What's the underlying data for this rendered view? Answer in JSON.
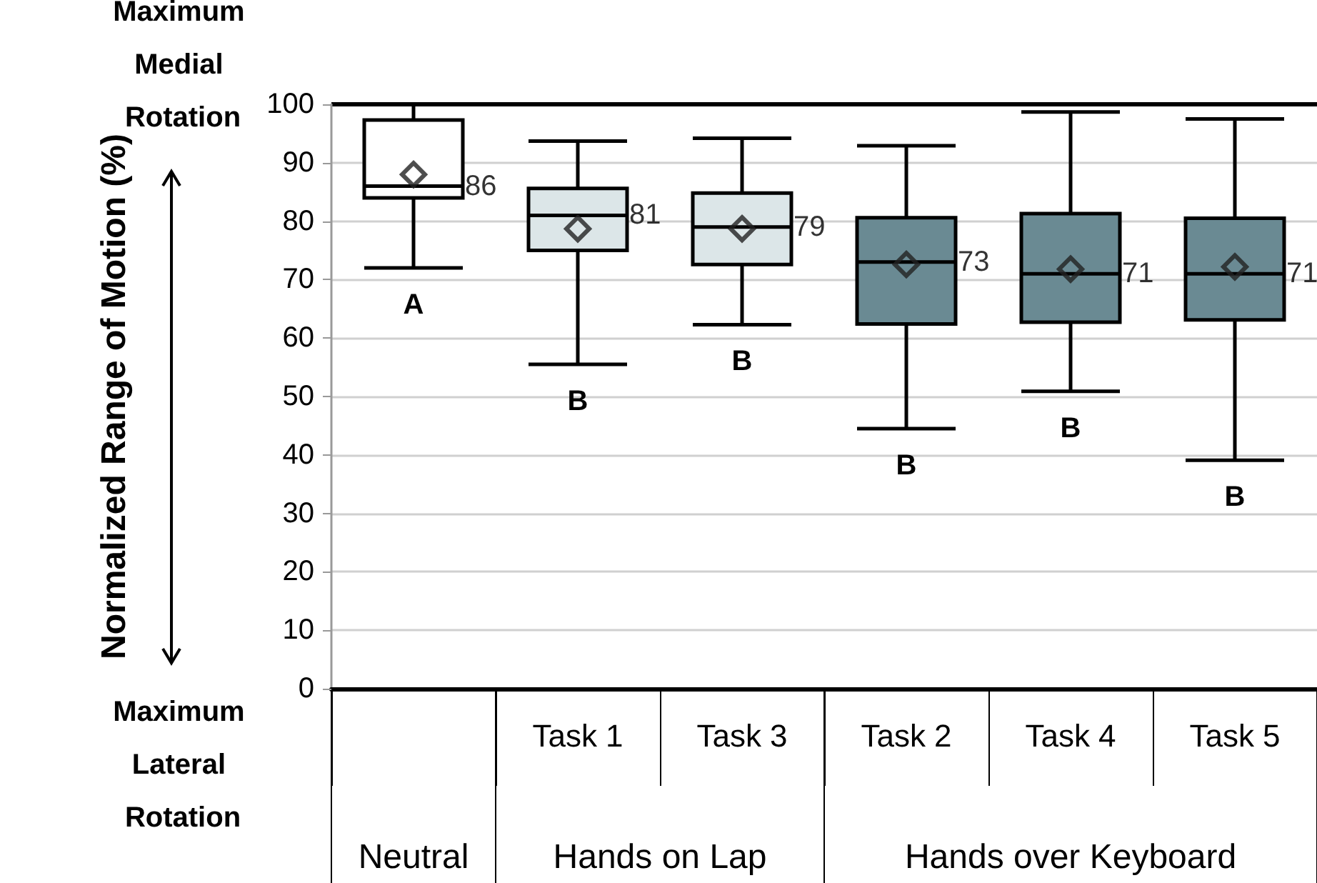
{
  "chart_data": {
    "type": "box",
    "ylabel": "Normalized Range of Motion (%)",
    "categories": [
      null,
      "Task 1",
      "Task 3",
      "Task 2",
      "Task 4",
      "Task 5"
    ],
    "boxes": [
      {
        "low": 72,
        "q1": 84,
        "median": 86,
        "q3": 97.3,
        "high": 100,
        "mean": 88
      },
      {
        "low": 55.5,
        "q1": 75,
        "median": 81,
        "q3": 85.6,
        "high": 93.7,
        "mean": 78.7
      },
      {
        "low": 62.3,
        "q1": 72.6,
        "median": 79,
        "q3": 84.8,
        "high": 94.2,
        "mean": 78.7
      },
      {
        "low": 44.5,
        "q1": 62.4,
        "median": 73,
        "q3": 80.6,
        "high": 92.9,
        "mean": 72.6
      },
      {
        "low": 50.9,
        "q1": 62.7,
        "median": 71,
        "q3": 81.3,
        "high": 98.7,
        "mean": 71.8
      },
      {
        "low": 39.1,
        "q1": 63.1,
        "median": 71,
        "q3": 80.5,
        "high": 97.5,
        "mean": 72.2
      }
    ],
    "colors": [
      "#ffffff",
      "#dce6e8",
      "#dce6e8",
      "#6a8a93",
      "#6a8a93",
      "#6a8a93"
    ],
    "value_labels": [
      "86",
      "81",
      "79",
      "73",
      "71",
      "71"
    ],
    "ylim": [
      0,
      100
    ],
    "yticks": [
      0,
      10,
      20,
      30,
      40,
      50,
      60,
      70,
      80,
      90,
      100
    ],
    "grid": "y",
    "marker": "diamond",
    "annotations": [
      "A",
      "B",
      "B",
      "B",
      "B",
      "B",
      "Maximum Medial Rotation",
      "Maximum Lateral Rotation",
      "Neutral",
      "Hands on Lap",
      "Hands over Keyboard"
    ]
  }
}
